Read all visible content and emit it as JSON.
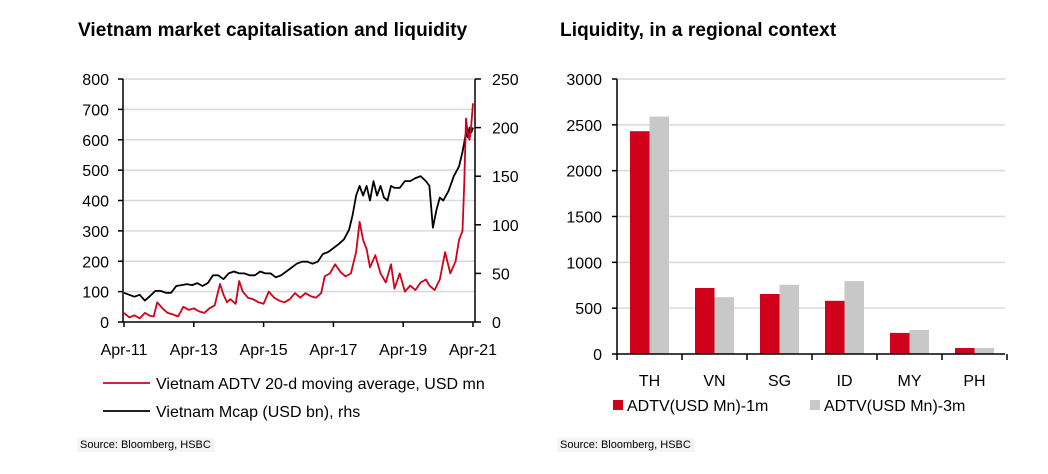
{
  "charts": {
    "left": {
      "title": "Vietnam market capitalisation and liquidity",
      "source": "Source: Bloomberg, HSBC"
    },
    "right": {
      "title": "Liquidity, in a regional context",
      "source": "Source: Bloomberg, HSBC"
    }
  },
  "chart_data": [
    {
      "type": "line",
      "title": "Vietnam market capitalisation and liquidity",
      "xlabel": "",
      "ylabel": "",
      "x_ticks": [
        "Apr-11",
        "Apr-13",
        "Apr-15",
        "Apr-17",
        "Apr-19",
        "Apr-21"
      ],
      "x_range": [
        2011.25,
        2021.25
      ],
      "y_left": {
        "range": [
          0,
          800
        ],
        "ticks": [
          0,
          100,
          200,
          300,
          400,
          500,
          600,
          700,
          800
        ]
      },
      "y_right": {
        "range": [
          0,
          250
        ],
        "ticks": [
          0,
          50,
          100,
          150,
          200,
          250
        ]
      },
      "grid": true,
      "legend_position": "bottom",
      "series": [
        {
          "name": "Vietnam ADTV 20-d moving average, USD mn",
          "axis": "left",
          "color": "#d0021b",
          "x": [
            2011.25,
            2011.4,
            2011.55,
            2011.7,
            2011.85,
            2012.0,
            2012.1,
            2012.2,
            2012.35,
            2012.5,
            2012.65,
            2012.8,
            2012.95,
            2013.1,
            2013.25,
            2013.4,
            2013.55,
            2013.7,
            2013.85,
            2014.0,
            2014.1,
            2014.2,
            2014.3,
            2014.45,
            2014.55,
            2014.65,
            2014.8,
            2014.95,
            2015.1,
            2015.25,
            2015.4,
            2015.55,
            2015.7,
            2015.85,
            2016.0,
            2016.15,
            2016.3,
            2016.45,
            2016.6,
            2016.75,
            2016.9,
            2017.0,
            2017.15,
            2017.3,
            2017.45,
            2017.6,
            2017.75,
            2017.9,
            2018.0,
            2018.1,
            2018.2,
            2018.3,
            2018.45,
            2018.6,
            2018.75,
            2018.9,
            2019.0,
            2019.15,
            2019.3,
            2019.45,
            2019.6,
            2019.75,
            2019.9,
            2020.0,
            2020.15,
            2020.3,
            2020.45,
            2020.6,
            2020.75,
            2020.85,
            2020.95,
            2021.0,
            2021.05,
            2021.1,
            2021.15,
            2021.2,
            2021.25
          ],
          "values": [
            30,
            15,
            22,
            12,
            30,
            20,
            18,
            65,
            45,
            30,
            25,
            18,
            50,
            40,
            45,
            35,
            30,
            45,
            55,
            125,
            90,
            65,
            75,
            60,
            135,
            100,
            80,
            75,
            65,
            60,
            100,
            80,
            70,
            65,
            75,
            95,
            80,
            95,
            85,
            80,
            95,
            150,
            160,
            190,
            165,
            150,
            160,
            230,
            330,
            270,
            240,
            180,
            220,
            160,
            130,
            190,
            110,
            160,
            100,
            120,
            105,
            130,
            140,
            120,
            105,
            140,
            230,
            160,
            200,
            270,
            300,
            460,
            670,
            620,
            600,
            650,
            720
          ]
        },
        {
          "name": "Vietnam Mcap (USD bn), rhs",
          "axis": "right",
          "color": "#000000",
          "x": [
            2011.25,
            2011.4,
            2011.55,
            2011.7,
            2011.85,
            2012.0,
            2012.15,
            2012.3,
            2012.45,
            2012.6,
            2012.75,
            2012.9,
            2013.05,
            2013.2,
            2013.35,
            2013.5,
            2013.65,
            2013.8,
            2013.95,
            2014.1,
            2014.25,
            2014.4,
            2014.55,
            2014.7,
            2014.85,
            2015.0,
            2015.15,
            2015.3,
            2015.45,
            2015.6,
            2015.75,
            2015.9,
            2016.05,
            2016.2,
            2016.35,
            2016.5,
            2016.65,
            2016.8,
            2016.95,
            2017.1,
            2017.25,
            2017.4,
            2017.55,
            2017.7,
            2017.8,
            2017.9,
            2018.0,
            2018.1,
            2018.2,
            2018.3,
            2018.4,
            2018.5,
            2018.6,
            2018.7,
            2018.8,
            2018.9,
            2019.0,
            2019.15,
            2019.3,
            2019.45,
            2019.6,
            2019.75,
            2019.9,
            2020.0,
            2020.1,
            2020.2,
            2020.3,
            2020.4,
            2020.55,
            2020.7,
            2020.85,
            2020.95,
            2021.0,
            2021.05,
            2021.1,
            2021.15,
            2021.2,
            2021.25
          ],
          "values": [
            30,
            28,
            26,
            28,
            22,
            27,
            32,
            32,
            30,
            30,
            37,
            38,
            39,
            38,
            40,
            37,
            40,
            48,
            48,
            44,
            50,
            52,
            50,
            50,
            48,
            48,
            52,
            50,
            50,
            46,
            48,
            52,
            56,
            60,
            62,
            62,
            60,
            62,
            70,
            72,
            76,
            80,
            85,
            95,
            110,
            130,
            140,
            130,
            140,
            125,
            145,
            130,
            140,
            128,
            125,
            140,
            138,
            138,
            145,
            145,
            148,
            150,
            145,
            140,
            97,
            115,
            128,
            125,
            135,
            150,
            160,
            175,
            185,
            195,
            190,
            200,
            195,
            200
          ]
        }
      ]
    },
    {
      "type": "bar",
      "title": "Liquidity, in a regional context",
      "xlabel": "",
      "ylabel": "",
      "categories": [
        "TH",
        "VN",
        "SG",
        "ID",
        "MY",
        "PH"
      ],
      "ylim": [
        0,
        3000
      ],
      "y_ticks": [
        0,
        500,
        1000,
        1500,
        2000,
        2500,
        3000
      ],
      "grid": true,
      "legend_position": "bottom",
      "series": [
        {
          "name": "ADTV(USD Mn)-1m",
          "color": "#d0021b",
          "values": [
            2430,
            720,
            655,
            580,
            230,
            65
          ]
        },
        {
          "name": "ADTV(USD Mn)-3m",
          "color": "#c8c8c8",
          "values": [
            2590,
            620,
            755,
            795,
            262,
            65
          ]
        }
      ]
    }
  ]
}
